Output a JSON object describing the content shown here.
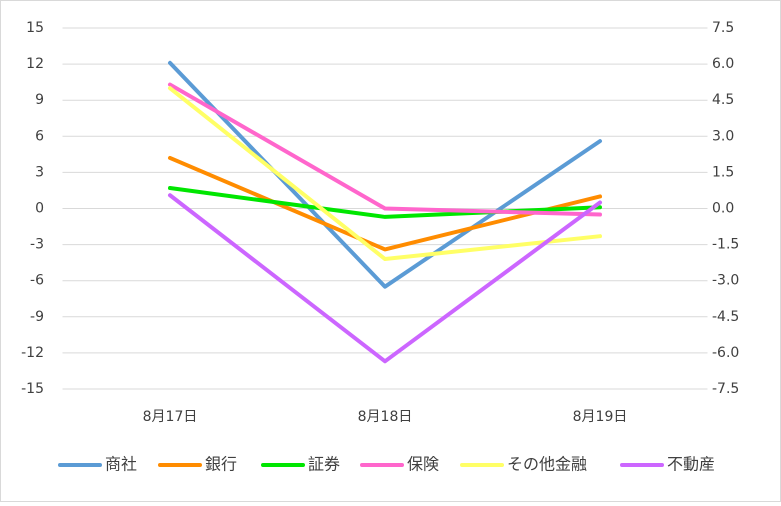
{
  "chart_data": {
    "type": "line",
    "categories": [
      "8月17日",
      "8月18日",
      "8月19日"
    ],
    "series": [
      {
        "name": "商社",
        "color": "#5b9bd5",
        "values": [
          12.1,
          -6.5,
          5.6
        ]
      },
      {
        "name": "銀行",
        "color": "#ff8c00",
        "values": [
          4.2,
          -3.4,
          1.0
        ]
      },
      {
        "name": "証券",
        "color": "#00e600",
        "values": [
          1.7,
          -0.7,
          0.1
        ]
      },
      {
        "name": "保険",
        "color": "#ff66cc",
        "values": [
          10.3,
          0,
          -0.5
        ]
      },
      {
        "name": "その他金融",
        "color": "#ffff66",
        "values": [
          10.0,
          -4.2,
          -2.3
        ]
      },
      {
        "name": "不動産",
        "color": "#cc66ff",
        "values": [
          1.1,
          -12.7,
          0.5
        ]
      }
    ],
    "ylim": [
      -15,
      15
    ],
    "yticks": [
      -15,
      -12,
      -9,
      -6,
      -3,
      0,
      3,
      6,
      9,
      12,
      15
    ],
    "y2lim": [
      -7.5,
      7.5
    ],
    "y2ticks": [
      -7.5,
      {
        "value": -6,
        "label": "-6.0"
      },
      -4.5,
      {
        "value": -3,
        "label": "-3.0"
      },
      -1.5,
      {
        "value": 0,
        "label": "0.0"
      },
      1.5,
      {
        "value": 3,
        "label": "3.0"
      },
      4.5,
      {
        "value": 6,
        "label": "6.0"
      },
      7.5
    ],
    "grid": true,
    "legend": "bottom"
  }
}
